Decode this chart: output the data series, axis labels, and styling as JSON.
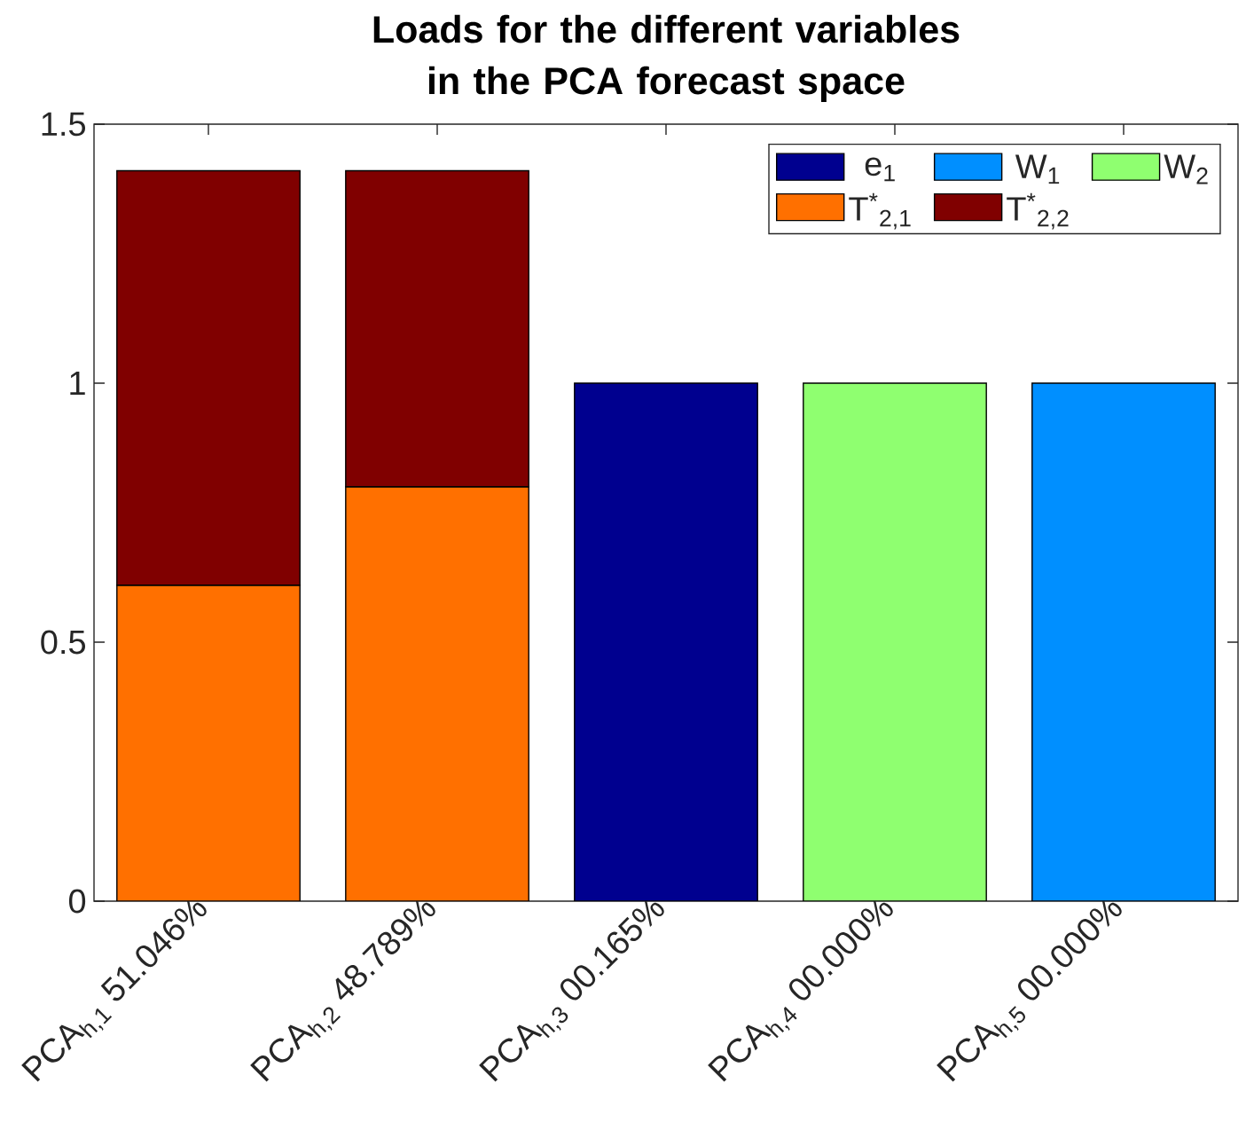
{
  "chart_data": {
    "type": "bar",
    "title": "Loads for the different variables in the PCA forecast space",
    "categories": [
      "PCA$_{h,1}$ 51.046%",
      "PCA$_{h,2}$ 48.789%",
      "PCA$_{h,3}$ 00.165%",
      "PCA$_{h,4}$ 00.000%",
      "PCA$_{h,5}$ 00.000%"
    ],
    "series": [
      {
        "name": "e$_{1}$",
        "color": "#00008f",
        "values": [
          null,
          null,
          1,
          null,
          null
        ]
      },
      {
        "name": "W$_{1}$",
        "color": "#008fff",
        "values": [
          null,
          null,
          null,
          null,
          1
        ]
      },
      {
        "name": "W$_{2}$",
        "color": "#8fff70",
        "values": [
          null,
          null,
          null,
          1,
          null
        ]
      },
      {
        "name": "T$^{*}$$_{2,1}$",
        "color": "#ff7000",
        "values": [
          0.61,
          0.8,
          null,
          null,
          null
        ]
      },
      {
        "name": "T$^{*}$$_{2,2}$",
        "color": "#800000",
        "values": [
          0.8,
          0.61,
          null,
          null,
          null
        ]
      }
    ],
    "stacked": true,
    "ylim": [
      0,
      1.5
    ],
    "yticks": [
      0,
      0.5,
      1,
      1.5
    ],
    "legend": "top right"
  }
}
